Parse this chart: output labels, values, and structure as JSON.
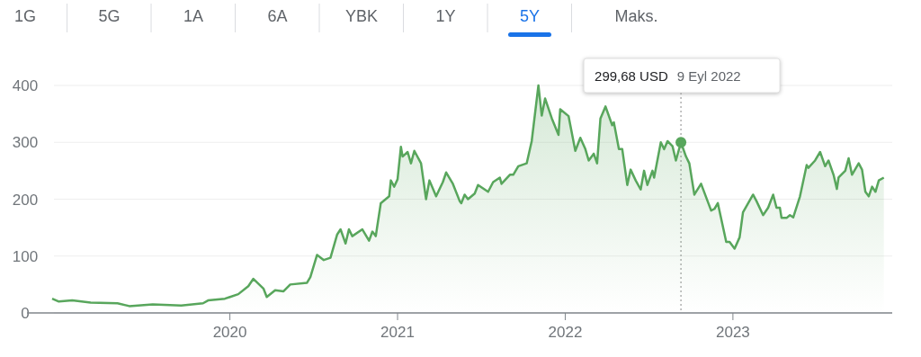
{
  "chart_data": {
    "type": "area",
    "xlim": [
      2018.79,
      2023.95
    ],
    "xticks": [
      2020,
      2021,
      2022,
      2023
    ],
    "ylim": [
      0,
      400
    ],
    "yticks": [
      0,
      100,
      200,
      300,
      400
    ],
    "grid": "y",
    "annotations": [
      "1G",
      "5G",
      "1A",
      "6A",
      "YBK",
      "1Y",
      "5Y",
      "Maks.",
      "299,68 USD",
      "9 Eyl 2022"
    ],
    "ref_lines": [
      {
        "axis": "x",
        "value": 2022.69,
        "color": "#9e9e9e",
        "line_style": "dotted"
      }
    ],
    "series": [
      {
        "color": "#58a65c",
        "x": [
          2018.94,
          2018.98,
          2019.06,
          2019.17,
          2019.33,
          2019.4,
          2019.54,
          2019.71,
          2019.84,
          2019.87,
          2019.97,
          2020.05,
          2020.11,
          2020.14,
          2020.2,
          2020.22,
          2020.27,
          2020.32,
          2020.36,
          2020.46,
          2020.48,
          2020.52,
          2020.56,
          2020.6,
          2020.64,
          2020.66,
          2020.69,
          2020.71,
          2020.73,
          2020.79,
          2020.83,
          2020.85,
          2020.87,
          2020.9,
          2020.95,
          2020.96,
          2020.98,
          2021.0,
          2021.02,
          2021.03,
          2021.06,
          2021.08,
          2021.1,
          2021.14,
          2021.17,
          2021.19,
          2021.23,
          2021.27,
          2021.29,
          2021.33,
          2021.37,
          2021.38,
          2021.4,
          2021.42,
          2021.46,
          2021.48,
          2021.52,
          2021.54,
          2021.57,
          2021.61,
          2021.62,
          2021.67,
          2021.69,
          2021.72,
          2021.77,
          2021.8,
          2021.84,
          2021.86,
          2021.88,
          2021.92,
          2021.96,
          2021.97,
          2022.02,
          2022.06,
          2022.09,
          2022.12,
          2022.14,
          2022.17,
          2022.19,
          2022.21,
          2022.24,
          2022.28,
          2022.29,
          2022.32,
          2022.34,
          2022.37,
          2022.39,
          2022.42,
          2022.45,
          2022.47,
          2022.49,
          2022.52,
          2022.53,
          2022.57,
          2022.59,
          2022.61,
          2022.64,
          2022.66,
          2022.69,
          2022.72,
          2022.74,
          2022.77,
          2022.81,
          2022.87,
          2022.89,
          2022.91,
          2022.96,
          2022.98,
          2023.01,
          2023.04,
          2023.06,
          2023.12,
          2023.14,
          2023.18,
          2023.21,
          2023.24,
          2023.26,
          2023.28,
          2023.29,
          2023.32,
          2023.34,
          2023.36,
          2023.4,
          2023.44,
          2023.45,
          2023.49,
          2023.52,
          2023.55,
          2023.57,
          2023.6,
          2023.62,
          2023.63,
          2023.67,
          2023.69,
          2023.71,
          2023.75,
          2023.77,
          2023.79,
          2023.81,
          2023.83,
          2023.85,
          2023.87,
          2023.9
        ],
        "values": [
          25,
          20,
          22,
          18,
          17,
          12,
          15,
          13,
          17,
          22,
          25,
          33,
          47,
          60,
          43,
          28,
          40,
          38,
          50,
          53,
          63,
          102,
          93,
          97,
          138,
          147,
          122,
          147,
          135,
          147,
          127,
          143,
          135,
          193,
          205,
          233,
          222,
          235,
          292,
          275,
          283,
          263,
          285,
          263,
          200,
          233,
          205,
          230,
          247,
          227,
          197,
          193,
          208,
          200,
          210,
          225,
          217,
          213,
          230,
          238,
          227,
          243,
          243,
          258,
          263,
          302,
          400,
          347,
          377,
          342,
          313,
          358,
          346,
          285,
          308,
          288,
          268,
          280,
          263,
          342,
          363,
          330,
          335,
          288,
          288,
          225,
          252,
          233,
          217,
          250,
          225,
          250,
          238,
          300,
          288,
          302,
          293,
          268,
          300,
          275,
          263,
          208,
          227,
          180,
          183,
          193,
          125,
          125,
          113,
          133,
          177,
          208,
          197,
          172,
          185,
          208,
          185,
          185,
          167,
          167,
          172,
          168,
          205,
          260,
          255,
          268,
          283,
          258,
          268,
          243,
          218,
          238,
          250,
          272,
          243,
          263,
          252,
          213,
          205,
          222,
          213,
          233,
          238
        ]
      },
      {
        "type": "scatter",
        "color": "#58a65c",
        "marker": "circle",
        "x": [
          2022.69
        ],
        "values": [
          300
        ]
      }
    ]
  }
}
